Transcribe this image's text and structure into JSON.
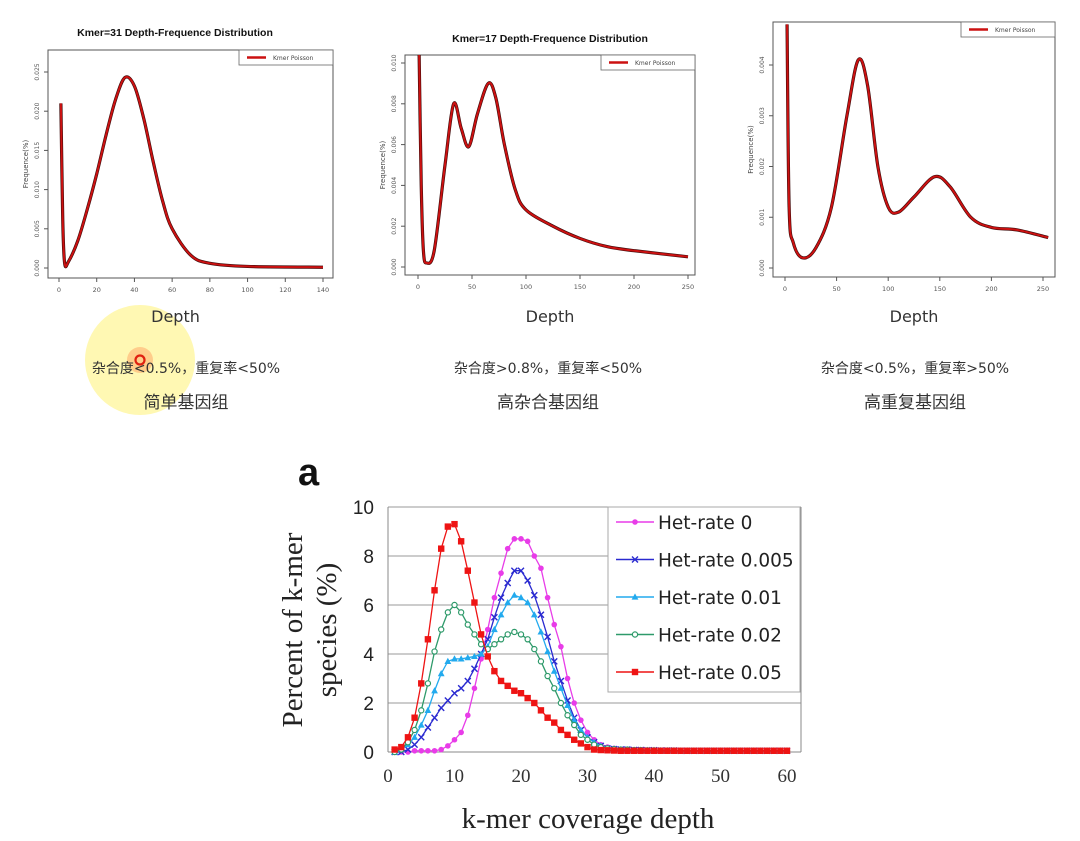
{
  "top_charts": [
    {
      "title": "Kmer=31 Depth-Frequence Distribution",
      "caption_line1": "杂合度<0.5%，重复率<50%",
      "caption_line2": "简单基因组",
      "xlabel": "Depth",
      "ylabel": "Frequence(%)",
      "legend": "Kmer Poisson"
    },
    {
      "title": "Kmer=17 Depth-Frequence Distribution",
      "caption_line1": "杂合度>0.8%，重复率<50%",
      "caption_line2": "高杂合基因组",
      "xlabel": "Depth",
      "ylabel": "Frequence(%)",
      "legend": "Kmer Poisson"
    },
    {
      "title": "",
      "caption_line1": "杂合度<0.5%，重复率>50%",
      "caption_line2": "高重复基因组",
      "xlabel": "Depth",
      "ylabel": "Frequence(%)",
      "legend": "Kmer Poisson"
    }
  ],
  "panel_label": "a",
  "colors": {
    "curve": "#cc1111",
    "het0": "#e83ce8",
    "het005": "#2a2ad0",
    "het01": "#22aaee",
    "het02": "#2e9a6a",
    "het05": "#ee1414"
  },
  "chart_data": [
    {
      "type": "line",
      "title": "Kmer=31 Depth-Frequence Distribution",
      "xlabel": "Depth",
      "ylabel": "Frequence(%)",
      "xlim": [
        0,
        140
      ],
      "ylim": [
        0,
        0.025
      ],
      "xticks": [
        0,
        20,
        40,
        60,
        80,
        100,
        120,
        140
      ],
      "yticks": [
        "0.000",
        "0.005",
        "0.010",
        "0.015",
        "0.020",
        "0.025"
      ],
      "legend_position": "top-right",
      "series": [
        {
          "name": "Kmer Poisson",
          "x": [
            1,
            2,
            3,
            5,
            10,
            15,
            20,
            25,
            30,
            35,
            40,
            45,
            50,
            55,
            60,
            70,
            80,
            100,
            140
          ],
          "y": [
            0.021,
            0.006,
            0.0006,
            0.0008,
            0.0035,
            0.0075,
            0.012,
            0.017,
            0.0215,
            0.0243,
            0.0232,
            0.019,
            0.0135,
            0.0085,
            0.005,
            0.0016,
            0.0006,
            0.0002,
            0.0001
          ]
        }
      ]
    },
    {
      "type": "line",
      "title": "Kmer=17 Depth-Frequence Distribution",
      "xlabel": "Depth",
      "ylabel": "Frequence(%)",
      "xlim": [
        0,
        250
      ],
      "ylim": [
        0,
        0.01
      ],
      "xticks": [
        0,
        50,
        100,
        150,
        200,
        250
      ],
      "yticks": [
        "0.000",
        "0.002",
        "0.004",
        "0.006",
        "0.008",
        "0.010"
      ],
      "legend_position": "top-right",
      "series": [
        {
          "name": "Kmer Poisson",
          "x": [
            1,
            3,
            5,
            8,
            15,
            25,
            33,
            40,
            47,
            55,
            65,
            72,
            80,
            90,
            100,
            125,
            150,
            175,
            200,
            250
          ],
          "y": [
            0.0106,
            0.004,
            0.0008,
            0.0002,
            0.0008,
            0.005,
            0.008,
            0.0068,
            0.0059,
            0.0075,
            0.009,
            0.0083,
            0.006,
            0.0038,
            0.0028,
            0.002,
            0.0014,
            0.001,
            0.0008,
            0.0005
          ]
        }
      ]
    },
    {
      "type": "line",
      "title": "",
      "xlabel": "Depth",
      "ylabel": "Frequence(%)",
      "xlim": [
        0,
        250
      ],
      "ylim": [
        0,
        0.004
      ],
      "xticks": [
        0,
        50,
        100,
        150,
        200,
        250
      ],
      "yticks": [
        "0.000",
        "0.001",
        "0.002",
        "0.003",
        "0.004"
      ],
      "legend_position": "top-right",
      "series": [
        {
          "name": "Kmer Poisson",
          "x": [
            2,
            4,
            8,
            17,
            30,
            45,
            60,
            71,
            80,
            90,
            100,
            110,
            125,
            145,
            160,
            180,
            200,
            225,
            255
          ],
          "y": [
            0.0048,
            0.0012,
            0.0005,
            0.0002,
            0.0004,
            0.0012,
            0.003,
            0.0041,
            0.0036,
            0.002,
            0.0012,
            0.0011,
            0.0014,
            0.0018,
            0.0016,
            0.001,
            0.0008,
            0.00075,
            0.0006
          ]
        }
      ]
    },
    {
      "type": "line",
      "title": "",
      "xlabel": "k-mer coverage depth",
      "ylabel": "Percent of k-mer species (%)",
      "xlim": [
        0,
        60
      ],
      "ylim": [
        0,
        10
      ],
      "xticks": [
        0,
        10,
        20,
        30,
        40,
        50,
        60
      ],
      "yticks": [
        0,
        2,
        4,
        6,
        8,
        10
      ],
      "grid": true,
      "legend_position": "top-right",
      "x": [
        1,
        2,
        3,
        4,
        5,
        6,
        7,
        8,
        9,
        10,
        11,
        12,
        13,
        14,
        15,
        16,
        17,
        18,
        19,
        20,
        21,
        22,
        23,
        24,
        25,
        26,
        27,
        28,
        29,
        30,
        31,
        32,
        33,
        34,
        35,
        36,
        37,
        38,
        39,
        40,
        41,
        42,
        43,
        44,
        45,
        46,
        47,
        48,
        49,
        50,
        51,
        52,
        53,
        54,
        55,
        56,
        57,
        58,
        59,
        60
      ],
      "series": [
        {
          "name": "Het-rate 0",
          "marker": "filled-circle",
          "color": "#e83ce8",
          "values": [
            0,
            0,
            0,
            0.05,
            0.05,
            0.05,
            0.05,
            0.1,
            0.25,
            0.5,
            0.8,
            1.5,
            2.6,
            3.8,
            5.0,
            6.3,
            7.3,
            8.3,
            8.7,
            8.7,
            8.6,
            8.0,
            7.5,
            6.3,
            5.2,
            4.3,
            3.0,
            2.0,
            1.3,
            0.8,
            0.5,
            0.3,
            0.2,
            0.15,
            0.1,
            0.1,
            0.08,
            0.08,
            0.07,
            0.07,
            0.06,
            0.06,
            0.06,
            0.05,
            0.05,
            0.05,
            0.05,
            0.05,
            0.05,
            0.05,
            0.05,
            0.05,
            0.05,
            0.05,
            0.05,
            0.05,
            0.05,
            0.05,
            0.05,
            0.05
          ]
        },
        {
          "name": "Het-rate 0.005",
          "marker": "x",
          "color": "#2a2ad0",
          "values": [
            0,
            0,
            0.1,
            0.3,
            0.6,
            1.0,
            1.4,
            1.8,
            2.1,
            2.4,
            2.6,
            2.9,
            3.4,
            4.0,
            4.6,
            5.5,
            6.3,
            6.9,
            7.4,
            7.4,
            7.0,
            6.4,
            5.6,
            4.7,
            3.7,
            2.9,
            2.1,
            1.4,
            0.9,
            0.6,
            0.4,
            0.25,
            0.15,
            0.12,
            0.1,
            0.1,
            0.08,
            0.08,
            0.07,
            0.07,
            0.06,
            0.06,
            0.06,
            0.05,
            0.05,
            0.05,
            0.05,
            0.05,
            0.05,
            0.05,
            0.05,
            0.05,
            0.05,
            0.05,
            0.05,
            0.05,
            0.05,
            0.05,
            0.05,
            0.05
          ]
        },
        {
          "name": "Het-rate 0.01",
          "marker": "triangle",
          "color": "#22aaee",
          "values": [
            0,
            0.1,
            0.3,
            0.6,
            1.1,
            1.7,
            2.5,
            3.2,
            3.7,
            3.8,
            3.8,
            3.85,
            3.9,
            4.0,
            4.3,
            5.0,
            5.6,
            6.1,
            6.4,
            6.3,
            6.1,
            5.6,
            4.9,
            4.1,
            3.3,
            2.6,
            1.9,
            1.3,
            0.9,
            0.6,
            0.4,
            0.25,
            0.15,
            0.12,
            0.1,
            0.1,
            0.08,
            0.08,
            0.07,
            0.07,
            0.06,
            0.06,
            0.06,
            0.05,
            0.05,
            0.05,
            0.05,
            0.05,
            0.05,
            0.05,
            0.05,
            0.05,
            0.05,
            0.05,
            0.05,
            0.05,
            0.05,
            0.05,
            0.05,
            0.05
          ]
        },
        {
          "name": "Het-rate 0.02",
          "marker": "open-circle",
          "color": "#2e9a6a",
          "values": [
            0,
            0.1,
            0.4,
            0.9,
            1.7,
            2.8,
            4.1,
            5.0,
            5.7,
            6.0,
            5.7,
            5.2,
            4.8,
            4.4,
            4.2,
            4.4,
            4.6,
            4.8,
            4.9,
            4.8,
            4.6,
            4.2,
            3.7,
            3.1,
            2.6,
            2.0,
            1.5,
            1.1,
            0.7,
            0.5,
            0.3,
            0.2,
            0.15,
            0.12,
            0.1,
            0.1,
            0.08,
            0.08,
            0.07,
            0.07,
            0.06,
            0.06,
            0.06,
            0.05,
            0.05,
            0.05,
            0.05,
            0.05,
            0.05,
            0.05,
            0.05,
            0.05,
            0.05,
            0.05,
            0.05,
            0.05,
            0.05,
            0.05,
            0.05,
            0.05
          ]
        },
        {
          "name": "Het-rate 0.05",
          "marker": "square",
          "color": "#ee1414",
          "values": [
            0.1,
            0.2,
            0.6,
            1.4,
            2.8,
            4.6,
            6.6,
            8.3,
            9.2,
            9.3,
            8.6,
            7.4,
            6.1,
            4.8,
            3.9,
            3.3,
            2.9,
            2.7,
            2.5,
            2.4,
            2.2,
            2.0,
            1.7,
            1.4,
            1.2,
            0.9,
            0.7,
            0.5,
            0.35,
            0.2,
            0.1,
            0.08,
            0.07,
            0.06,
            0.05,
            0.05,
            0.05,
            0.05,
            0.05,
            0.05,
            0.05,
            0.05,
            0.05,
            0.05,
            0.05,
            0.05,
            0.05,
            0.05,
            0.05,
            0.05,
            0.05,
            0.05,
            0.05,
            0.05,
            0.05,
            0.05,
            0.05,
            0.05,
            0.05,
            0.05
          ]
        }
      ]
    }
  ]
}
